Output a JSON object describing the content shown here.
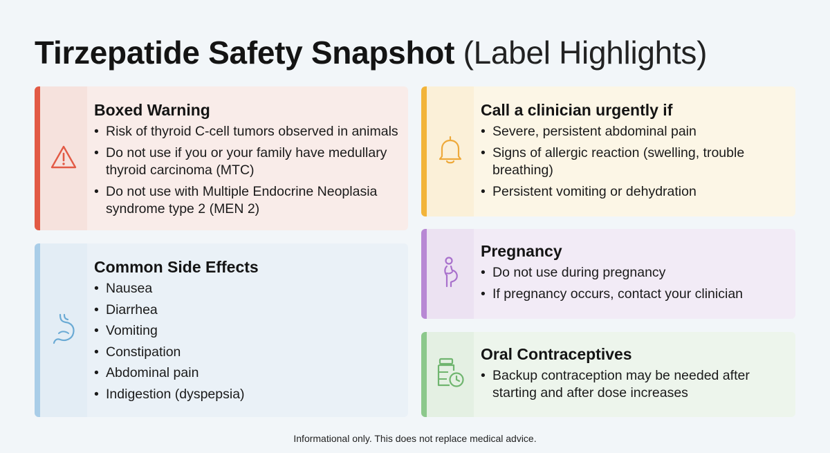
{
  "title": {
    "strong": "Tirzepatide Safety Snapshot",
    "light": "(Label Highlights)"
  },
  "cards": {
    "boxed": {
      "icon": "warning-triangle-icon",
      "accent": "#e25a45",
      "heading": "Boxed Warning",
      "items": [
        "Risk of thyroid C-cell tumors observed in animals",
        "Do not use if you or your family have medullary thyroid carcinoma (MTC)",
        "Do not use with Multiple Endocrine Neoplasia syndrome type 2 (MEN 2)"
      ]
    },
    "side": {
      "icon": "stomach-icon",
      "accent": "#a9cde8",
      "heading": "Common Side Effects",
      "items": [
        "Nausea",
        "Diarrhea",
        "Vomiting",
        "Constipation",
        "Abdominal pain",
        "Indigestion (dyspepsia)"
      ]
    },
    "urgent": {
      "icon": "bell-icon",
      "accent": "#f2b43a",
      "heading": "Call a clinician urgently if",
      "items": [
        "Severe, persistent abdominal pain",
        "Signs of allergic reaction (swelling, trouble breathing)",
        "Persistent vomiting or dehydration"
      ]
    },
    "preg": {
      "icon": "pregnant-person-icon",
      "accent": "#b888d4",
      "heading": "Pregnancy",
      "items": [
        "Do not use during pregnancy",
        "If pregnancy occurs, contact your clinician"
      ]
    },
    "oral": {
      "icon": "pill-bottle-clock-icon",
      "accent": "#8cc88c",
      "heading": "Oral Contraceptives",
      "items": [
        "Backup contraception may be needed after starting and after dose increases"
      ]
    }
  },
  "footer": "Informational only. This does not replace medical advice."
}
